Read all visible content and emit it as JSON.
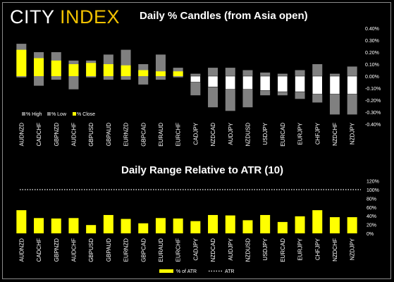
{
  "brand": {
    "part1": "CITY ",
    "part2": "INDEX",
    "color1": "#ffffff",
    "color2": "#f2c200"
  },
  "chart_data": [
    {
      "type": "bar",
      "title": "Daily % Candles (from Asia open)",
      "categories": [
        "AUDNZD",
        "CADCHF",
        "GBPNZD",
        "AUDCHF",
        "GBPUSD",
        "GBPAUD",
        "EURNZD",
        "GBPCAD",
        "EURAUD",
        "EURCHF",
        "CADJPY",
        "NZDCAD",
        "AUDJPY",
        "NZDUSD",
        "USDJPY",
        "EURCAD",
        "EURJPY",
        "CHFJPY",
        "NZDCHF",
        "NZDJPY"
      ],
      "series": [
        {
          "name": "% High",
          "color": "#808080",
          "values": [
            0.27,
            0.2,
            0.2,
            0.13,
            0.13,
            0.18,
            0.22,
            0.1,
            0.18,
            0.07,
            0.02,
            0.07,
            0.07,
            0.05,
            0.03,
            0.02,
            0.05,
            0.1,
            0.02,
            0.08
          ]
        },
        {
          "name": "% Low",
          "color": "#808080",
          "values": [
            -0.01,
            -0.08,
            -0.03,
            -0.11,
            -0.01,
            -0.03,
            -0.03,
            -0.07,
            -0.03,
            -0.01,
            -0.16,
            -0.26,
            -0.29,
            -0.26,
            -0.16,
            -0.16,
            -0.19,
            -0.22,
            -0.32,
            -0.32
          ]
        },
        {
          "name": "% Close",
          "color": "#ffff00",
          "values": [
            0.22,
            0.15,
            0.13,
            0.1,
            0.11,
            0.1,
            0.09,
            0.05,
            0.04,
            0.04,
            -0.05,
            -0.09,
            -0.11,
            -0.11,
            -0.12,
            -0.13,
            -0.13,
            -0.15,
            -0.15,
            -0.15
          ]
        }
      ],
      "yticks": [
        "0.40%",
        "0.30%",
        "0.20%",
        "0.10%",
        "0.00%",
        "-0.10%",
        "-0.20%",
        "-0.30%",
        "-0.40%"
      ],
      "ylim": [
        -0.4,
        0.4
      ],
      "legend": [
        "% High",
        "% Low",
        "% Close"
      ],
      "legend_position": "bottom-left"
    },
    {
      "type": "bar",
      "title": "Daily Range Relative to ATR (10)",
      "categories": [
        "AUDNZD",
        "CADCHF",
        "GBPNZD",
        "AUDCHF",
        "GBPUSD",
        "GBPAUD",
        "EURNZD",
        "GBPCAD",
        "EURAUD",
        "EURCHF",
        "CADJPY",
        "NZDCAD",
        "AUDJPY",
        "NZDUSD",
        "USDJPY",
        "EURCAD",
        "EURJPY",
        "CHFJPY",
        "NZDCHF",
        "NZDJPY"
      ],
      "series": [
        {
          "name": "% of ATR",
          "color": "#ffff00",
          "values": [
            53,
            35,
            34,
            35,
            19,
            42,
            33,
            23,
            35,
            34,
            28,
            42,
            41,
            30,
            42,
            26,
            39,
            53,
            37,
            37
          ]
        },
        {
          "name": "ATR",
          "color": "#ffffff",
          "values": [
            100,
            100,
            100,
            100,
            100,
            100,
            100,
            100,
            100,
            100,
            100,
            100,
            100,
            100,
            100,
            100,
            100,
            100,
            100,
            100
          ]
        }
      ],
      "yticks": [
        "120%",
        "100%",
        "80%",
        "60%",
        "40%",
        "20%",
        "0%"
      ],
      "ylim": [
        0,
        120
      ],
      "legend": [
        "% of ATR",
        "ATR"
      ],
      "legend_position": "bottom-center"
    }
  ]
}
